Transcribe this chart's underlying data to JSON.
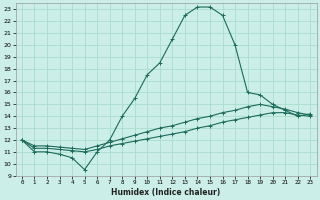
{
  "title": "",
  "xlabel": "Humidex (Indice chaleur)",
  "background_color": "#cceee8",
  "grid_color": "#aaddcc",
  "line_color": "#1a6b5a",
  "xlim": [
    -0.5,
    23.5
  ],
  "ylim": [
    9,
    23.5
  ],
  "xticks": [
    0,
    1,
    2,
    3,
    4,
    5,
    6,
    7,
    8,
    9,
    10,
    11,
    12,
    13,
    14,
    15,
    16,
    17,
    18,
    19,
    20,
    21,
    22,
    23
  ],
  "yticks": [
    9,
    10,
    11,
    12,
    13,
    14,
    15,
    16,
    17,
    18,
    19,
    20,
    21,
    22,
    23
  ],
  "line1_x": [
    0,
    1,
    2,
    3,
    4,
    5,
    6,
    7,
    8,
    9,
    10,
    11,
    12,
    13,
    14,
    15,
    16,
    17,
    18,
    19,
    20,
    21,
    22,
    23
  ],
  "line1_y": [
    12,
    11,
    11,
    10.8,
    10.5,
    9.5,
    11,
    12,
    14,
    15.5,
    17.5,
    18.5,
    20.5,
    22.5,
    23.2,
    23.2,
    22.5,
    20,
    16,
    15.8,
    15,
    14.5,
    14,
    14.2
  ],
  "line2_x": [
    0,
    1,
    2,
    3,
    4,
    5,
    6,
    7,
    8,
    9,
    10,
    11,
    12,
    13,
    14,
    15,
    16,
    17,
    18,
    19,
    20,
    21,
    22,
    23
  ],
  "line2_y": [
    12,
    11.3,
    11.3,
    11.2,
    11.1,
    11.0,
    11.2,
    11.5,
    11.7,
    11.9,
    12.1,
    12.3,
    12.5,
    12.7,
    13.0,
    13.2,
    13.5,
    13.7,
    13.9,
    14.1,
    14.3,
    14.3,
    14.1,
    14.0
  ],
  "line3_x": [
    0,
    1,
    2,
    3,
    4,
    5,
    6,
    7,
    8,
    9,
    10,
    11,
    12,
    13,
    14,
    15,
    16,
    17,
    18,
    19,
    20,
    21,
    22,
    23
  ],
  "line3_y": [
    12,
    11.5,
    11.5,
    11.4,
    11.3,
    11.2,
    11.5,
    11.8,
    12.1,
    12.4,
    12.7,
    13.0,
    13.2,
    13.5,
    13.8,
    14.0,
    14.3,
    14.5,
    14.8,
    15.0,
    14.8,
    14.6,
    14.3,
    14.1
  ]
}
